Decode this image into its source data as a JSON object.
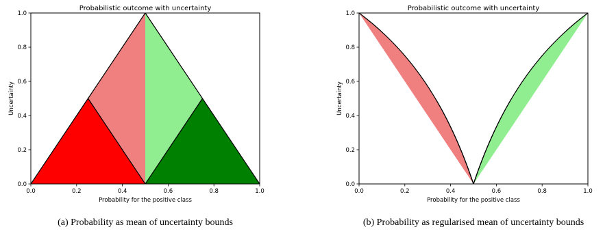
{
  "colors": {
    "red": "#ff0000",
    "lightcoral": "#f08080",
    "lightgreen": "#90ee90",
    "green": "#008000"
  },
  "chart_data": [
    {
      "type": "area",
      "title": "Probabilistic outcome with uncertainty",
      "xlabel": "Probability for the positive class",
      "ylabel": "Uncertainty",
      "xlim": [
        0,
        1
      ],
      "ylim": [
        0,
        1
      ],
      "xticks": [
        "0.0",
        "0.2",
        "0.4",
        "0.6",
        "0.8",
        "1.0"
      ],
      "yticks": [
        "0.0",
        "0.2",
        "0.4",
        "0.6",
        "0.8",
        "1.0"
      ],
      "grid": false,
      "caption": "(a) Probability as mean of uncertainty bounds",
      "regions": [
        {
          "color": "red",
          "points": [
            [
              0,
              0
            ],
            [
              0.25,
              0.5
            ],
            [
              0.5,
              0
            ]
          ]
        },
        {
          "color": "lightcoral",
          "points": [
            [
              0.25,
              0.5
            ],
            [
              0.5,
              1
            ],
            [
              0.5,
              0
            ]
          ]
        },
        {
          "color": "lightgreen",
          "points": [
            [
              0.5,
              0
            ],
            [
              0.5,
              1
            ],
            [
              0.75,
              0.5
            ]
          ]
        },
        {
          "color": "green",
          "points": [
            [
              0.5,
              0
            ],
            [
              0.75,
              0.5
            ],
            [
              1,
              0
            ]
          ]
        }
      ]
    },
    {
      "type": "area",
      "title": "Probabilistic outcome with uncertainty",
      "xlabel": "Probability for the positive class",
      "ylabel": "Uncertainty",
      "xlim": [
        0,
        1
      ],
      "ylim": [
        0,
        1
      ],
      "xticks": [
        "0.0",
        "0.2",
        "0.4",
        "0.6",
        "0.8",
        "1.0"
      ],
      "yticks": [
        "0.0",
        "0.2",
        "0.4",
        "0.6",
        "0.8",
        "1.0"
      ],
      "grid": false,
      "caption": "(b) Probability as regularised mean of uncertainty bounds",
      "curve_model": "regularised",
      "key_points": {
        "apex": [
          0.5,
          1
        ],
        "left_peak": [
          0.333,
          0.5
        ],
        "right_peak": [
          0.667,
          0.5
        ]
      }
    }
  ]
}
